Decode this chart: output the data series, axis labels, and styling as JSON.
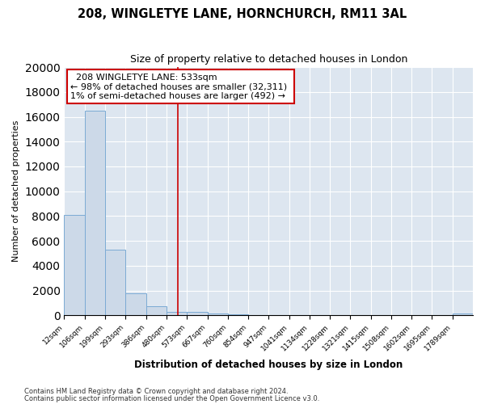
{
  "title": "208, WINGLETYE LANE, HORNCHURCH, RM11 3AL",
  "subtitle": "Size of property relative to detached houses in London",
  "xlabel": "Distribution of detached houses by size in London",
  "ylabel": "Number of detached properties",
  "bar_color": "#ccd9e8",
  "bar_edge_color": "#7baad4",
  "background_color": "#dde6f0",
  "annotation_box_color": "#ffffff",
  "annotation_box_edge": "#cc0000",
  "vline_color": "#cc0000",
  "vline_x": 533,
  "bin_edges": [
    12,
    106,
    199,
    293,
    386,
    480,
    573,
    667,
    760,
    854,
    947,
    1041,
    1134,
    1228,
    1321,
    1415,
    1508,
    1602,
    1695,
    1789,
    1882
  ],
  "bar_heights": [
    8100,
    16500,
    5300,
    1750,
    750,
    300,
    270,
    150,
    100,
    50,
    0,
    0,
    0,
    0,
    0,
    0,
    0,
    0,
    0,
    150
  ],
  "ylim": [
    0,
    20000
  ],
  "yticks": [
    0,
    2000,
    4000,
    6000,
    8000,
    10000,
    12000,
    14000,
    16000,
    18000,
    20000
  ],
  "annotation_title": "208 WINGLETYE LANE: 533sqm",
  "annotation_line1": "← 98% of detached houses are smaller (32,311)",
  "annotation_line2": "1% of semi-detached houses are larger (492) →",
  "footnote1": "Contains HM Land Registry data © Crown copyright and database right 2024.",
  "footnote2": "Contains public sector information licensed under the Open Government Licence v3.0."
}
